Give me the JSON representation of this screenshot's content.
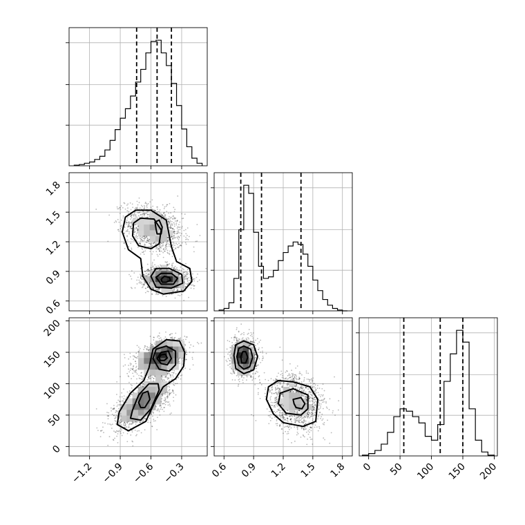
{
  "chart_data": {
    "type": "corner",
    "grid": true,
    "params": [
      {
        "range": [
          -1.4,
          -0.05
        ],
        "ticks": [
          -1.2,
          -0.9,
          -0.6,
          -0.3
        ],
        "tick_labels": [
          "−1.2",
          "−0.9",
          "−0.6",
          "−0.3"
        ]
      },
      {
        "range": [
          0.5,
          1.9
        ],
        "ticks": [
          0.6,
          0.9,
          1.2,
          1.5,
          1.8
        ],
        "tick_labels": [
          "0.6",
          "0.9",
          "1.2",
          "1.5",
          "1.8"
        ]
      },
      {
        "range": [
          -15,
          205
        ],
        "ticks": [
          0,
          50,
          100,
          150,
          200
        ],
        "tick_labels": [
          "0",
          "50",
          "100",
          "150",
          "200"
        ]
      }
    ],
    "histograms": [
      {
        "param": 0,
        "quantiles": [
          -0.74,
          -0.54,
          -0.4
        ],
        "edges": [
          -1.35,
          -1.3,
          -1.25,
          -1.2,
          -1.15,
          -1.1,
          -1.05,
          -1.0,
          -0.95,
          -0.9,
          -0.85,
          -0.8,
          -0.75,
          -0.7,
          -0.65,
          -0.6,
          -0.55,
          -0.5,
          -0.45,
          -0.4,
          -0.35,
          -0.3,
          -0.25,
          -0.2,
          -0.15,
          -0.1
        ],
        "counts": [
          1,
          2,
          4,
          6,
          10,
          15,
          25,
          40,
          57,
          75,
          90,
          110,
          132,
          152,
          178,
          196,
          198,
          178,
          158,
          130,
          95,
          58,
          30,
          12,
          4
        ]
      },
      {
        "param": 1,
        "quantiles": [
          0.77,
          0.98,
          1.38
        ],
        "edges": [
          0.55,
          0.6,
          0.65,
          0.7,
          0.75,
          0.8,
          0.85,
          0.9,
          0.95,
          1.0,
          1.05,
          1.1,
          1.15,
          1.2,
          1.25,
          1.3,
          1.35,
          1.4,
          1.45,
          1.5,
          1.55,
          1.6,
          1.65,
          1.7,
          1.75,
          1.8,
          1.85
        ],
        "counts": [
          1,
          3,
          10,
          40,
          100,
          155,
          145,
          97,
          55,
          40,
          42,
          50,
          62,
          72,
          80,
          85,
          82,
          70,
          55,
          38,
          25,
          14,
          7,
          3,
          1,
          0
        ]
      },
      {
        "param": 2,
        "quantiles": [
          56,
          114,
          150
        ],
        "edges": [
          -10,
          0,
          10,
          20,
          30,
          40,
          50,
          60,
          70,
          80,
          90,
          100,
          110,
          120,
          130,
          140,
          150,
          160,
          170,
          180,
          190,
          200
        ],
        "counts": [
          1,
          3,
          7,
          15,
          30,
          50,
          60,
          57,
          50,
          42,
          25,
          20,
          40,
          95,
          130,
          160,
          145,
          60,
          20,
          5,
          1
        ]
      }
    ],
    "scatter_blobs": [
      {
        "xparam": 0,
        "yparam": 1,
        "components": [
          {
            "cx": -0.57,
            "cy": 1.33,
            "sx": 0.14,
            "sy": 0.12,
            "rho": -0.3,
            "n": 1300
          },
          {
            "cx": -0.46,
            "cy": 0.82,
            "sx": 0.11,
            "sy": 0.06,
            "rho": -0.1,
            "n": 1600
          }
        ]
      },
      {
        "xparam": 0,
        "yparam": 2,
        "components": [
          {
            "cx": -0.5,
            "cy": 142,
            "sx": 0.12,
            "sy": 14,
            "rho": 0.4,
            "n": 1500
          },
          {
            "cx": -0.68,
            "cy": 70,
            "sx": 0.14,
            "sy": 22,
            "rho": 0.65,
            "n": 1400
          }
        ]
      },
      {
        "xparam": 1,
        "yparam": 2,
        "components": [
          {
            "cx": 0.8,
            "cy": 142,
            "sx": 0.06,
            "sy": 14,
            "rho": 0,
            "n": 1500
          },
          {
            "cx": 1.33,
            "cy": 70,
            "sx": 0.14,
            "sy": 22,
            "rho": -0.2,
            "n": 1400
          }
        ]
      }
    ],
    "contours": [
      {
        "xparam": 0,
        "yparam": 1,
        "levels": [
          [
            [
              -0.85,
              1.45
            ],
            [
              -0.75,
              1.52
            ],
            [
              -0.6,
              1.52
            ],
            [
              -0.45,
              1.42
            ],
            [
              -0.4,
              1.15
            ],
            [
              -0.35,
              1.0
            ],
            [
              -0.22,
              0.93
            ],
            [
              -0.2,
              0.8
            ],
            [
              -0.28,
              0.7
            ],
            [
              -0.48,
              0.67
            ],
            [
              -0.6,
              0.72
            ],
            [
              -0.68,
              0.85
            ],
            [
              -0.7,
              1.03
            ],
            [
              -0.82,
              1.12
            ],
            [
              -0.88,
              1.3
            ]
          ],
          [
            [
              -0.77,
              1.39
            ],
            [
              -0.7,
              1.44
            ],
            [
              -0.57,
              1.43
            ],
            [
              -0.5,
              1.32
            ],
            [
              -0.52,
              1.18
            ],
            [
              -0.6,
              1.13
            ],
            [
              -0.72,
              1.16
            ],
            [
              -0.78,
              1.26
            ]
          ],
          [
            [
              -0.6,
              0.85
            ],
            [
              -0.55,
              0.93
            ],
            [
              -0.42,
              0.93
            ],
            [
              -0.3,
              0.87
            ],
            [
              -0.29,
              0.78
            ],
            [
              -0.4,
              0.73
            ],
            [
              -0.55,
              0.74
            ]
          ],
          [
            [
              -0.55,
              0.84
            ],
            [
              -0.5,
              0.88
            ],
            [
              -0.4,
              0.88
            ],
            [
              -0.34,
              0.83
            ],
            [
              -0.38,
              0.77
            ],
            [
              -0.5,
              0.77
            ]
          ],
          [
            [
              -0.55,
              1.33
            ],
            [
              -0.56,
              1.4
            ],
            [
              -0.52,
              1.42
            ],
            [
              -0.49,
              1.35
            ],
            [
              -0.5,
              1.28
            ],
            [
              -0.54,
              1.28
            ]
          ],
          [
            [
              -0.5,
              0.82
            ],
            [
              -0.47,
              0.85
            ],
            [
              -0.42,
              0.84
            ],
            [
              -0.41,
              0.81
            ],
            [
              -0.45,
              0.79
            ],
            [
              -0.49,
              0.79
            ]
          ]
        ]
      },
      {
        "xparam": 0,
        "yparam": 2,
        "levels": [
          [
            [
              -0.91,
              55
            ],
            [
              -0.93,
              35
            ],
            [
              -0.82,
              25
            ],
            [
              -0.65,
              40
            ],
            [
              -0.55,
              75
            ],
            [
              -0.48,
              95
            ],
            [
              -0.36,
              108
            ],
            [
              -0.28,
              128
            ],
            [
              -0.27,
              150
            ],
            [
              -0.32,
              168
            ],
            [
              -0.45,
              170
            ],
            [
              -0.58,
              155
            ],
            [
              -0.62,
              125
            ],
            [
              -0.67,
              105
            ],
            [
              -0.8,
              85
            ]
          ],
          [
            [
              -0.78,
              58
            ],
            [
              -0.8,
              45
            ],
            [
              -0.7,
              42
            ],
            [
              -0.6,
              60
            ],
            [
              -0.52,
              90
            ],
            [
              -0.53,
              100
            ],
            [
              -0.62,
              100
            ],
            [
              -0.72,
              82
            ]
          ],
          [
            [
              -0.58,
              140
            ],
            [
              -0.55,
              155
            ],
            [
              -0.45,
              160
            ],
            [
              -0.36,
              152
            ],
            [
              -0.36,
              130
            ],
            [
              -0.42,
              120
            ],
            [
              -0.52,
              123
            ]
          ],
          [
            [
              -0.54,
              140
            ],
            [
              -0.5,
              150
            ],
            [
              -0.43,
              152
            ],
            [
              -0.4,
              140
            ],
            [
              -0.44,
              130
            ],
            [
              -0.5,
              132
            ]
          ],
          [
            [
              -0.72,
              70
            ],
            [
              -0.68,
              85
            ],
            [
              -0.63,
              88
            ],
            [
              -0.61,
              75
            ],
            [
              -0.66,
              62
            ],
            [
              -0.7,
              62
            ]
          ],
          [
            [
              -0.52,
              141
            ],
            [
              -0.5,
              146
            ],
            [
              -0.46,
              147
            ],
            [
              -0.44,
              141
            ],
            [
              -0.47,
              137
            ],
            [
              -0.51,
              137
            ]
          ]
        ]
      },
      {
        "xparam": 1,
        "yparam": 2,
        "levels": [
          [
            [
              0.7,
              145
            ],
            [
              0.72,
              162
            ],
            [
              0.8,
              168
            ],
            [
              0.9,
              162
            ],
            [
              0.94,
              143
            ],
            [
              0.9,
              122
            ],
            [
              0.8,
              116
            ],
            [
              0.72,
              124
            ]
          ],
          [
            [
              0.73,
              143
            ],
            [
              0.75,
              156
            ],
            [
              0.8,
              160
            ],
            [
              0.87,
              155
            ],
            [
              0.89,
              142
            ],
            [
              0.86,
              127
            ],
            [
              0.8,
              123
            ],
            [
              0.75,
              130
            ]
          ],
          [
            [
              0.77,
              143
            ],
            [
              0.79,
              151
            ],
            [
              0.82,
              151
            ],
            [
              0.84,
              142
            ],
            [
              0.82,
              133
            ],
            [
              0.78,
              133
            ]
          ],
          [
            [
              1.05,
              95
            ],
            [
              1.15,
              105
            ],
            [
              1.3,
              103
            ],
            [
              1.47,
              95
            ],
            [
              1.55,
              75
            ],
            [
              1.53,
              40
            ],
            [
              1.4,
              32
            ],
            [
              1.2,
              38
            ],
            [
              1.1,
              52
            ],
            [
              1.03,
              75
            ]
          ],
          [
            [
              1.17,
              85
            ],
            [
              1.3,
              92
            ],
            [
              1.45,
              82
            ],
            [
              1.45,
              60
            ],
            [
              1.38,
              50
            ],
            [
              1.23,
              53
            ],
            [
              1.15,
              68
            ]
          ],
          [
            [
              1.3,
              75
            ],
            [
              1.38,
              78
            ],
            [
              1.42,
              68
            ],
            [
              1.39,
              60
            ],
            [
              1.33,
              62
            ],
            [
              1.31,
              68
            ]
          ]
        ]
      }
    ]
  }
}
